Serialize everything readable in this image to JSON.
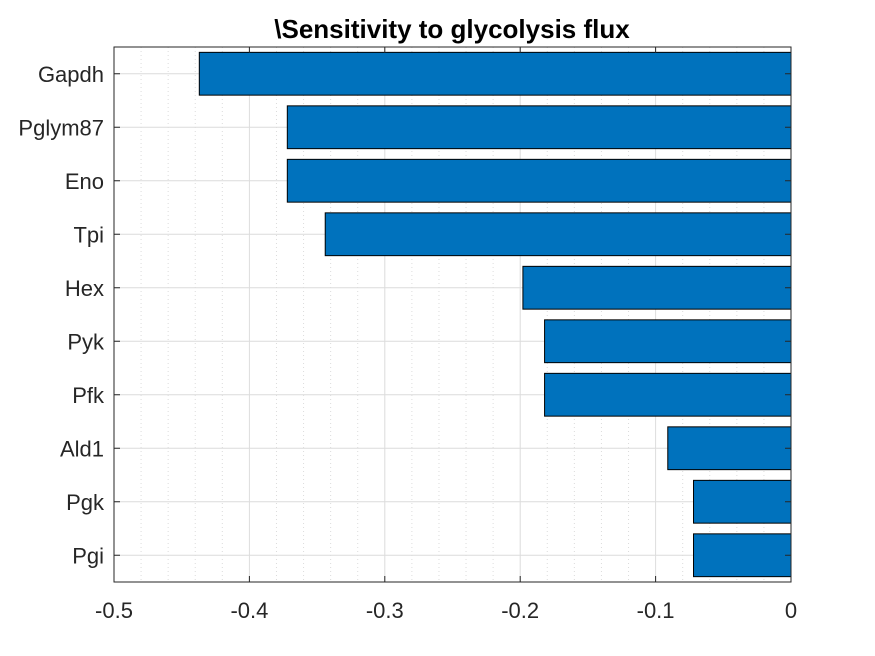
{
  "chart_data": {
    "type": "bar",
    "orientation": "horizontal",
    "title": "\\Sensitivity to glycolysis flux",
    "xlabel": "",
    "ylabel": "",
    "xlim": [
      -0.5,
      0
    ],
    "xticks": [
      -0.5,
      -0.4,
      -0.3,
      -0.2,
      -0.1,
      0
    ],
    "xtick_labels": [
      "-0.5",
      "-0.4",
      "-0.3",
      "-0.2",
      "-0.1",
      "0"
    ],
    "categories": [
      "Gapdh",
      "Pglym87",
      "Eno",
      "Tpi",
      "Hex",
      "Pyk",
      "Pfk",
      "Ald1",
      "Pgk",
      "Pgi"
    ],
    "values": [
      -0.437,
      -0.372,
      -0.372,
      -0.344,
      -0.198,
      -0.182,
      -0.182,
      -0.091,
      -0.072,
      -0.072
    ],
    "grid": true,
    "minor_grid": true,
    "legend": "none",
    "colors": {
      "bar": "#0072BD",
      "bar_edge": "#000000",
      "grid": "#dcdcdc",
      "axis": "#262626",
      "background": "#ffffff"
    }
  }
}
